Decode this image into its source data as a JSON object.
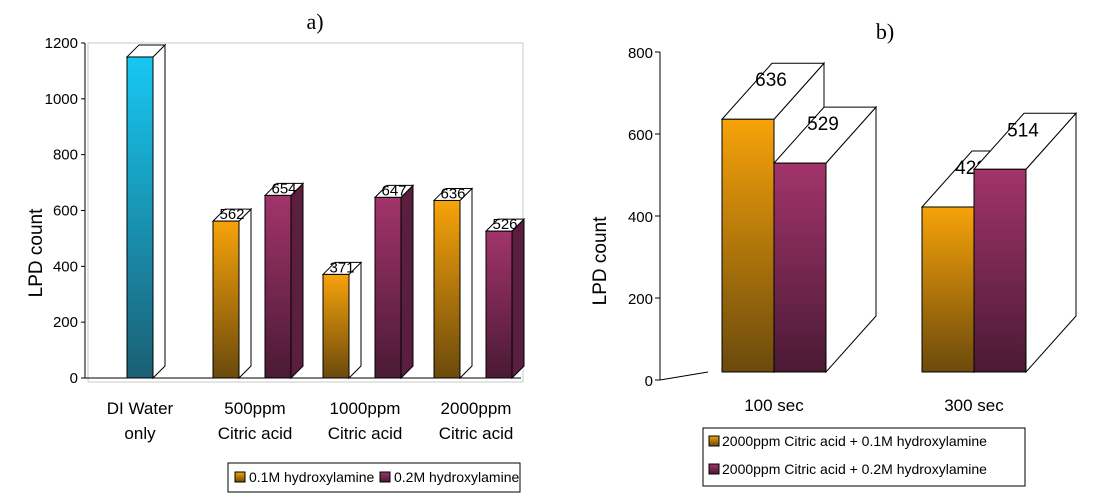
{
  "chart_data": [
    {
      "panel": "a)",
      "type": "bar",
      "ylabel": "LPD count",
      "ylim": [
        0,
        1200
      ],
      "yticks": [
        "0",
        "200",
        "400",
        "600",
        "800",
        "1000",
        "1200"
      ],
      "categories": [
        [
          "DI Water",
          "only"
        ],
        [
          "500ppm",
          "Citric acid"
        ],
        [
          "1000ppm",
          "Citric acid"
        ],
        [
          "2000ppm",
          "Citric acid"
        ]
      ],
      "series": [
        {
          "name": "0.1M hydroxylamine",
          "values": [
            null,
            562,
            371,
            636
          ],
          "labels": [
            "",
            "562",
            "371",
            "636"
          ],
          "color": "#f7a30a",
          "dark": "#6b4a0c"
        },
        {
          "name": "0.2M hydroxylamine",
          "values": [
            null,
            654,
            647,
            526
          ],
          "labels": [
            "",
            "654",
            "647",
            "526"
          ],
          "color": "#a2346b",
          "dark": "#4a1a34"
        }
      ],
      "extra_bar": {
        "category_index": 0,
        "value": 1150,
        "color": "#17c8f2",
        "dark": "#1b5f74"
      },
      "legend": "bottom",
      "grid": false
    },
    {
      "panel": "b)",
      "type": "bar",
      "ylabel": "LPD count",
      "ylim": [
        0,
        800
      ],
      "yticks": [
        "0",
        "200",
        "400",
        "600",
        "800"
      ],
      "categories": [
        [
          "100 sec"
        ],
        [
          "300 sec"
        ]
      ],
      "series": [
        {
          "name": "2000ppm Citric acid + 0.1M hydroxylamine",
          "values": [
            636,
            422
          ],
          "labels": [
            "636",
            "422"
          ],
          "color": "#f7a30a",
          "dark": "#6b4a0c"
        },
        {
          "name": "2000ppm Citric acid + 0.2M hydroxylamine",
          "values": [
            529,
            514
          ],
          "labels": [
            "529",
            "514"
          ],
          "color": "#a2346b",
          "dark": "#4a1a34"
        }
      ],
      "legend": "bottom",
      "grid": false
    }
  ]
}
